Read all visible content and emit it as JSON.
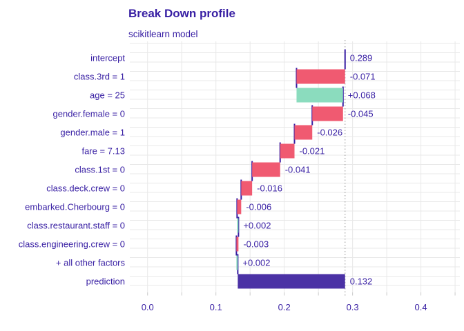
{
  "title": "Break Down profile",
  "subtitle": "scikitlearn model",
  "colors": {
    "text": "#371ea3",
    "negative_bar": "#f05a71",
    "positive_bar": "#8bdcbe",
    "prediction_bar": "#4b32a5",
    "connector": "#371ea3",
    "grid": "#e8e8e8",
    "dotted_line": "#a3a3a3",
    "tick_mark": "#c9c9c9"
  },
  "chart_data": {
    "type": "bar",
    "variant": "horizontal-waterfall-breakdown",
    "title": "Break Down profile",
    "subtitle": "scikitlearn model",
    "xlabel": "",
    "ylabel": "",
    "xlim": [
      -0.026,
      0.457
    ],
    "x_major_ticks": [
      0.0,
      0.1,
      0.2,
      0.3,
      0.4
    ],
    "x_tick_labels": [
      "0.0",
      "0.1",
      "0.2",
      "0.3",
      "0.4"
    ],
    "x_minor_step": 0.05,
    "grid": true,
    "legend": false,
    "baseline_dotted_at": 0.289,
    "rows": [
      {
        "label": "intercept",
        "value_label": "0.289",
        "contribution": 0.289,
        "start": 0.289,
        "end": 0.289,
        "kind": "intercept"
      },
      {
        "label": "class.3rd = 1",
        "value_label": "-0.071",
        "contribution": -0.071,
        "start": 0.289,
        "end": 0.218,
        "kind": "negative"
      },
      {
        "label": "age = 25",
        "value_label": "+0.068",
        "contribution": 0.068,
        "start": 0.218,
        "end": 0.286,
        "kind": "positive"
      },
      {
        "label": "gender.female = 0",
        "value_label": "-0.045",
        "contribution": -0.045,
        "start": 0.286,
        "end": 0.241,
        "kind": "negative"
      },
      {
        "label": "gender.male = 1",
        "value_label": "-0.026",
        "contribution": -0.026,
        "start": 0.241,
        "end": 0.215,
        "kind": "negative"
      },
      {
        "label": "fare = 7.13",
        "value_label": "-0.021",
        "contribution": -0.021,
        "start": 0.215,
        "end": 0.194,
        "kind": "negative"
      },
      {
        "label": "class.1st = 0",
        "value_label": "-0.041",
        "contribution": -0.041,
        "start": 0.194,
        "end": 0.153,
        "kind": "negative"
      },
      {
        "label": "class.deck.crew = 0",
        "value_label": "-0.016",
        "contribution": -0.016,
        "start": 0.153,
        "end": 0.137,
        "kind": "negative"
      },
      {
        "label": "embarked.Cherbourg = 0",
        "value_label": "-0.006",
        "contribution": -0.006,
        "start": 0.137,
        "end": 0.131,
        "kind": "negative"
      },
      {
        "label": "class.restaurant.staff = 0",
        "value_label": "+0.002",
        "contribution": 0.002,
        "start": 0.131,
        "end": 0.133,
        "kind": "positive"
      },
      {
        "label": "class.engineering.crew = 0",
        "value_label": "-0.003",
        "contribution": -0.003,
        "start": 0.133,
        "end": 0.13,
        "kind": "negative"
      },
      {
        "label": "+ all other factors",
        "value_label": "+0.002",
        "contribution": 0.002,
        "start": 0.13,
        "end": 0.132,
        "kind": "positive"
      },
      {
        "label": "prediction",
        "value_label": "0.132",
        "contribution": 0.132,
        "start": 0.289,
        "end": 0.132,
        "kind": "prediction"
      }
    ]
  }
}
